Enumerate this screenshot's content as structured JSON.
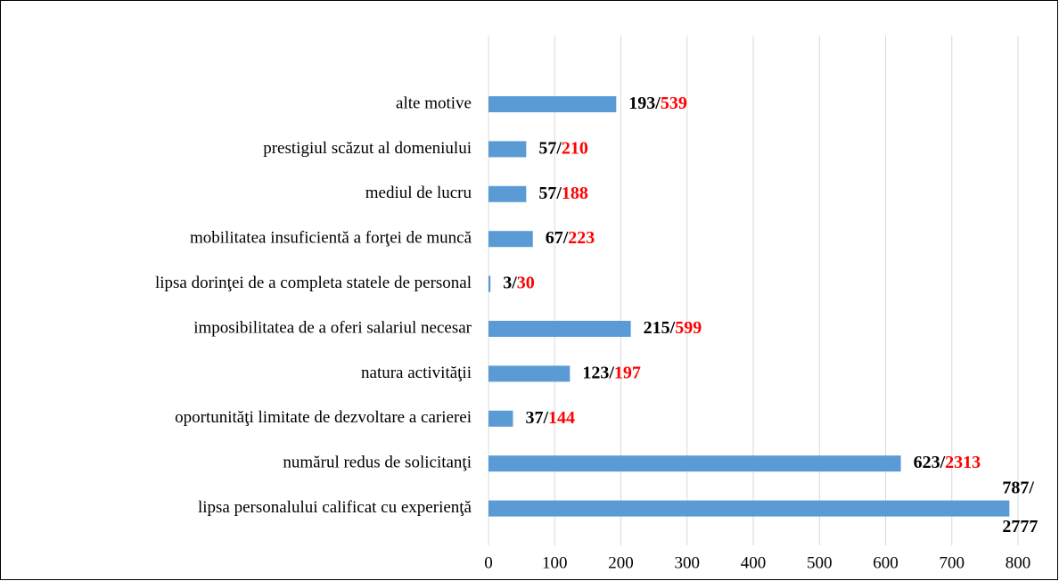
{
  "chart_data": {
    "type": "hbar",
    "categories": [
      "alte motive",
      "prestigiul scăzut al domeniului",
      "mediul de lucru",
      "mobilitatea insuficientă a forţei de muncă",
      "lipsa dorinţei de a completa statele de personal",
      "imposibilitatea de a oferi salariul necesar",
      "natura activităţii",
      "oportunităţi limitate de dezvoltare a carierei",
      "numărul redus de solicitanţi",
      "lipsa personalului calificat cu experienţă"
    ],
    "values": [
      193,
      57,
      57,
      67,
      3,
      215,
      123,
      37,
      623,
      787
    ],
    "value_labels": [
      "193/",
      "57/",
      "57/",
      "67/",
      "3/",
      "215/",
      "123/",
      "37/",
      "623/",
      "787/"
    ],
    "totals": [
      539,
      210,
      188,
      223,
      30,
      599,
      197,
      144,
      2313,
      2777
    ],
    "color": "#5b9bd5",
    "total_color": "#ff0000",
    "xlim": [
      0,
      800
    ],
    "xticks": [
      0,
      100,
      200,
      300,
      400,
      500,
      600,
      700,
      800
    ],
    "grid": true
  }
}
